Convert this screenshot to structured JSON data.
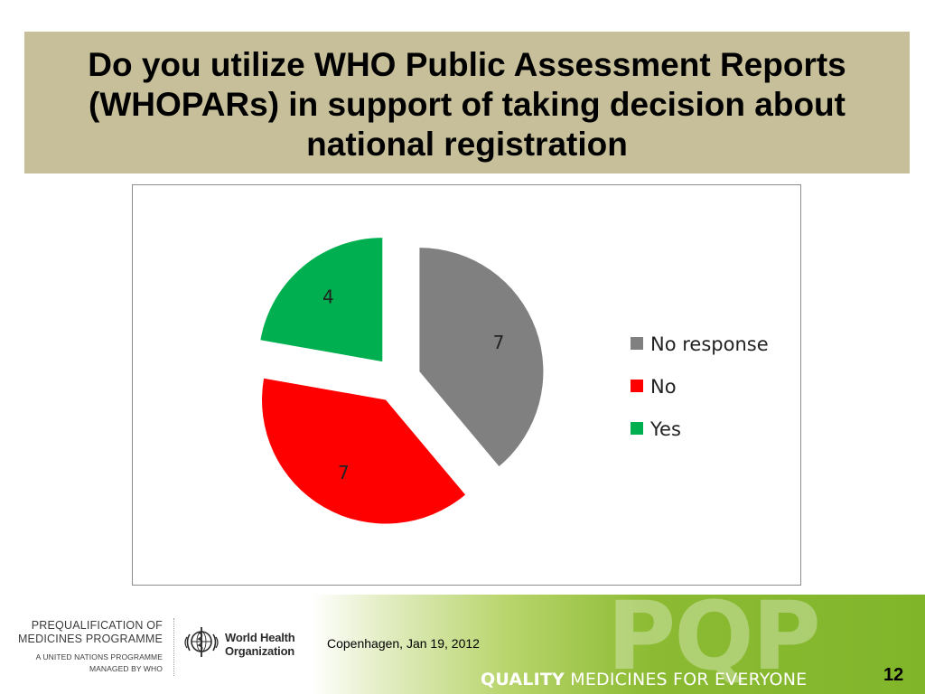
{
  "slide": {
    "title": "Do you utilize WHO Public Assessment Reports (WHOPARs) in support of taking decision about national registration",
    "page_number": "12"
  },
  "chart_data": {
    "type": "pie",
    "exploded": true,
    "categories": [
      "No response",
      "No",
      "Yes"
    ],
    "values": [
      7,
      7,
      4
    ],
    "colors": [
      "#808080",
      "#ff0000",
      "#00b050"
    ],
    "legend_position": "right",
    "data_labels": true,
    "title": ""
  },
  "footer": {
    "programme_line1": "PREQUALIFICATION OF",
    "programme_line2": "MEDICINES PROGRAMME",
    "programme_sub1": "A UNITED NATIONS PROGRAMME",
    "programme_sub2": "MANAGED BY WHO",
    "who_line1": "World Health",
    "who_line2": "Organization",
    "location_date": "Copenhagen, Jan 19, 2012",
    "pqp_mark": "PQP",
    "tagline_bold": "QUALITY",
    "tagline_rest": " MEDICINES FOR EVERYONE"
  },
  "icons": {
    "who_emblem": "who-emblem-icon"
  }
}
